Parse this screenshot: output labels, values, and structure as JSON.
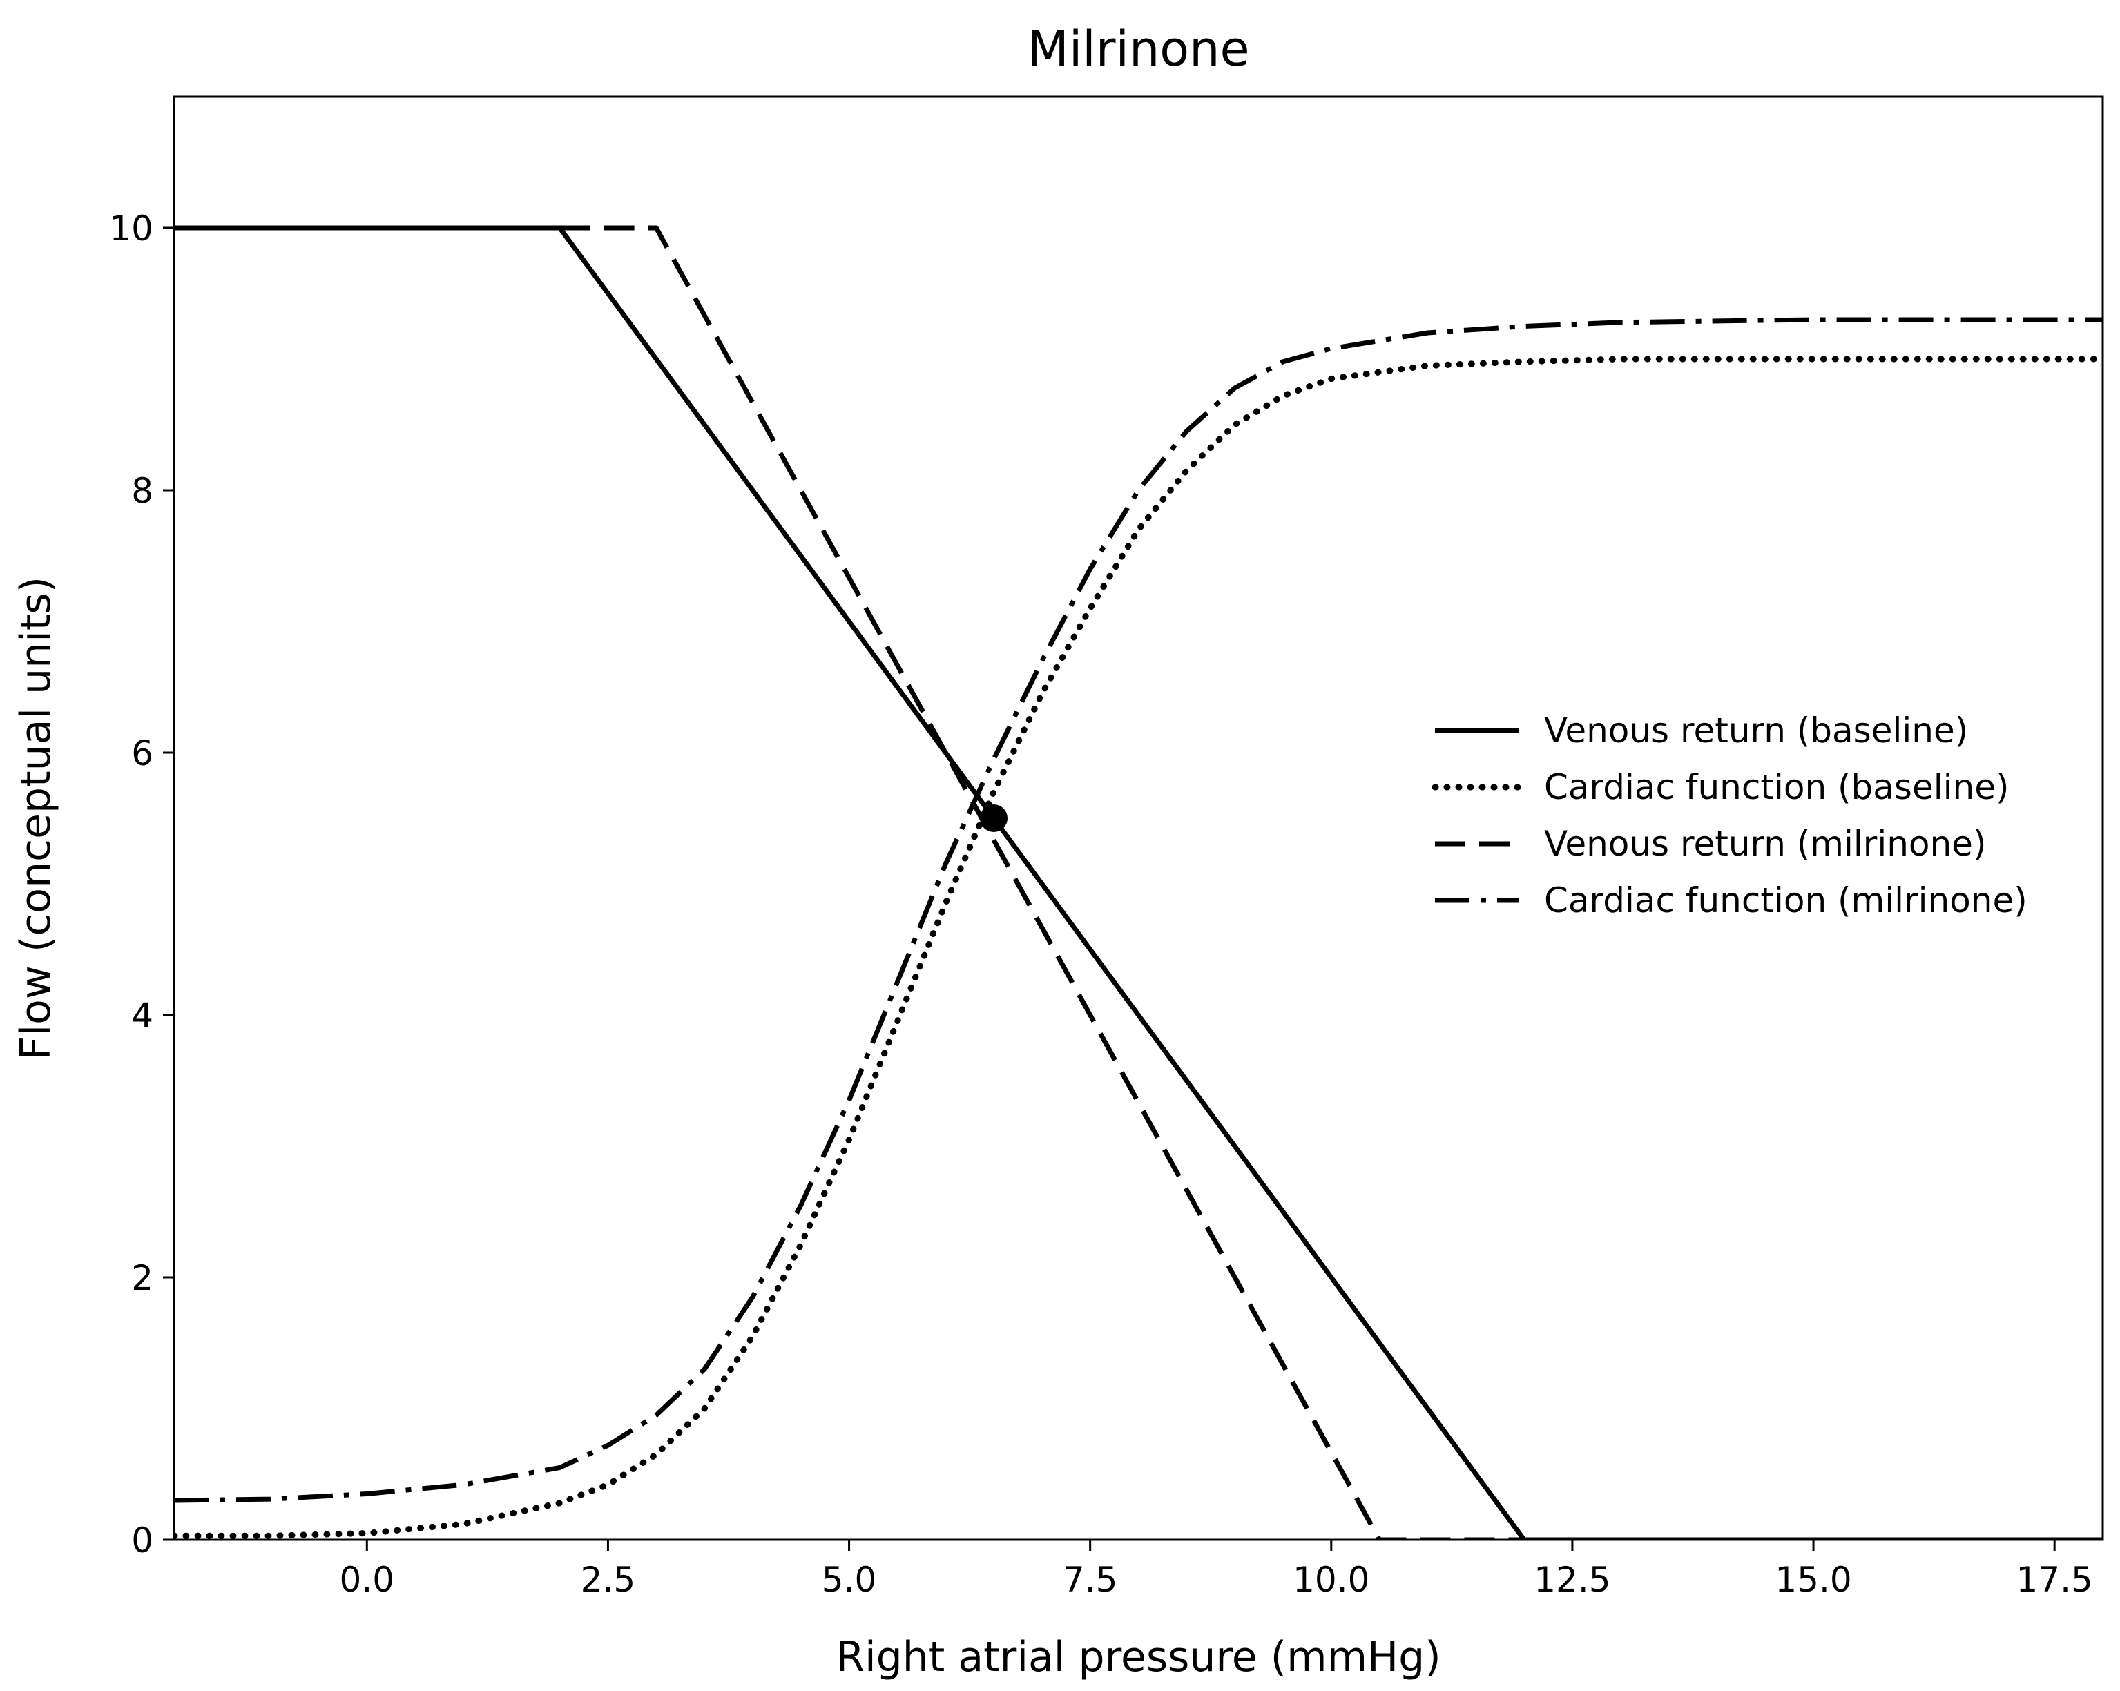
{
  "chart_data": {
    "type": "line",
    "title": "Milrinone",
    "xlabel": "Right atrial pressure (mmHg)",
    "ylabel": "Flow (conceptual units)",
    "xlim": [
      -2.0,
      18.0
    ],
    "ylim": [
      0,
      11
    ],
    "xticks": [
      0.0,
      2.5,
      5.0,
      7.5,
      10.0,
      12.5,
      15.0,
      17.5
    ],
    "xtick_labels": [
      "0.0",
      "2.5",
      "5.0",
      "7.5",
      "10.0",
      "12.5",
      "15.0",
      "17.5"
    ],
    "yticks": [
      0,
      2,
      4,
      6,
      8,
      10
    ],
    "ytick_labels": [
      "0",
      "2",
      "4",
      "6",
      "8",
      "10"
    ],
    "grid": false,
    "legend_position": "right",
    "series": [
      {
        "name": "Venous return (baseline)",
        "style": "solid",
        "x": [
          -2.0,
          2.0,
          12.0,
          18.0
        ],
        "y": [
          10.0,
          10.0,
          0.0,
          0.0
        ]
      },
      {
        "name": "Cardiac function (baseline)",
        "style": "dotted",
        "x": [
          -2.0,
          -1.0,
          0.0,
          1.0,
          2.0,
          2.5,
          3.0,
          3.5,
          4.0,
          4.5,
          5.0,
          5.5,
          6.0,
          6.5,
          7.0,
          7.5,
          8.0,
          8.5,
          9.0,
          9.5,
          10.0,
          11.0,
          12.0,
          13.0,
          15.0,
          18.0
        ],
        "y": [
          0.03,
          0.03,
          0.05,
          0.12,
          0.28,
          0.42,
          0.65,
          1.0,
          1.55,
          2.25,
          3.05,
          3.95,
          4.85,
          5.7,
          6.45,
          7.1,
          7.7,
          8.15,
          8.5,
          8.72,
          8.85,
          8.95,
          8.98,
          9.0,
          9.0,
          9.0
        ]
      },
      {
        "name": "Venous return (milrinone)",
        "style": "dashed",
        "x": [
          2.0,
          3.0,
          10.5,
          12.0
        ],
        "y": [
          10.0,
          10.0,
          0.0,
          0.0
        ]
      },
      {
        "name": "Cardiac function (milrinone)",
        "style": "dashdot",
        "x": [
          -2.0,
          -1.0,
          0.0,
          1.0,
          2.0,
          2.5,
          3.0,
          3.5,
          4.0,
          4.5,
          5.0,
          5.5,
          6.0,
          6.5,
          7.0,
          7.5,
          8.0,
          8.5,
          9.0,
          9.5,
          10.0,
          11.0,
          12.0,
          13.0,
          15.0,
          18.0
        ],
        "y": [
          0.3,
          0.31,
          0.35,
          0.42,
          0.55,
          0.72,
          0.95,
          1.3,
          1.85,
          2.55,
          3.35,
          4.25,
          5.15,
          5.95,
          6.7,
          7.4,
          8.0,
          8.45,
          8.78,
          8.98,
          9.08,
          9.2,
          9.25,
          9.28,
          9.3,
          9.3
        ]
      }
    ],
    "annotations": [
      {
        "type": "point",
        "x": 6.5,
        "y": 5.5,
        "label": ""
      }
    ]
  }
}
